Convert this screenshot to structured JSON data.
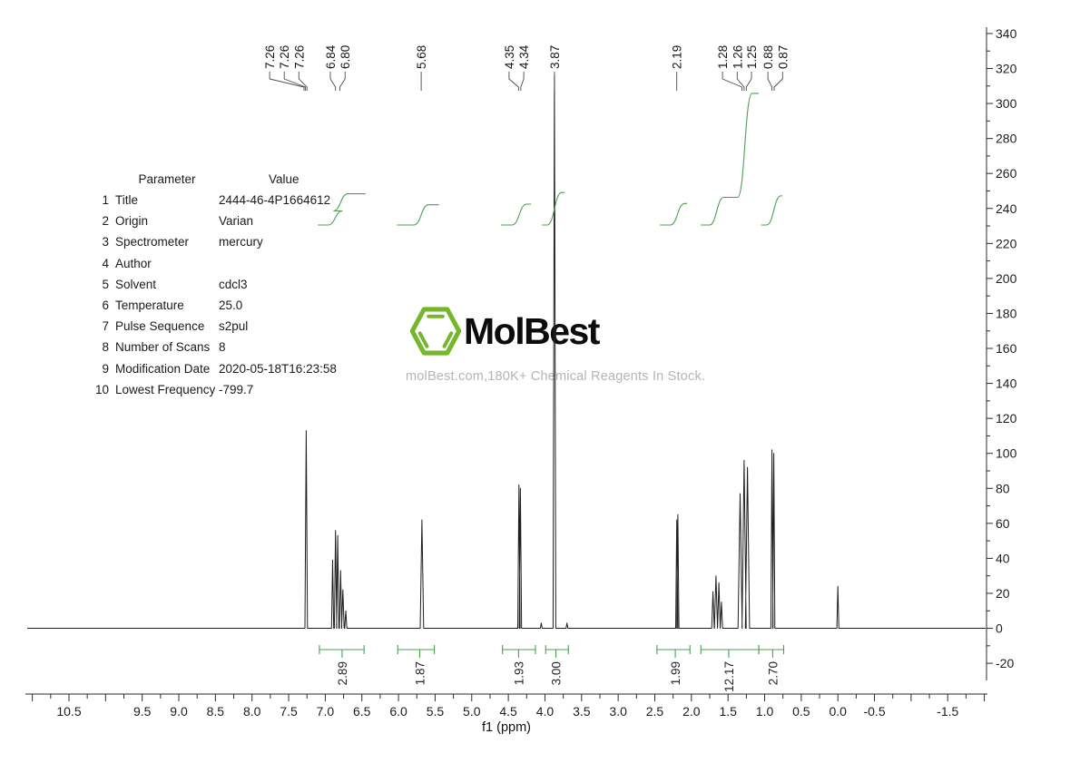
{
  "logo": {
    "brand": "MolBest",
    "tagline": "molBest.com,180K+ Chemical Reagents In Stock.",
    "hexagon_icon": "benzene-hexagon"
  },
  "parameter_table": {
    "headers": [
      "Parameter",
      "Value"
    ],
    "rows": [
      [
        "1",
        "Title",
        "2444-46-4P1664612"
      ],
      [
        "2",
        "Origin",
        "Varian"
      ],
      [
        "3",
        "Spectrometer",
        "mercury"
      ],
      [
        "4",
        "Author",
        ""
      ],
      [
        "5",
        "Solvent",
        "cdcl3"
      ],
      [
        "6",
        "Temperature",
        "25.0"
      ],
      [
        "7",
        "Pulse Sequence",
        "s2pul"
      ],
      [
        "8",
        "Number of Scans",
        "8"
      ],
      [
        "9",
        "Modification Date",
        "2020-05-18T16:23:58"
      ],
      [
        "10",
        "Lowest Frequency",
        "-799.7"
      ]
    ]
  },
  "colors": {
    "integral_green": "#4c9f50",
    "logo_green": "#74b72b",
    "trace": "#1f1f1f",
    "axis": "#2a2a2a",
    "watermark_gray": "#b5b5b5"
  },
  "chart_data": {
    "type": "line",
    "description": "1H NMR spectrum with peak picking and integration",
    "xlabel": "f1 (ppm)",
    "grid": false,
    "x_axis": {
      "range": [
        11.07,
        -2.03
      ],
      "minor_tick_step": 0.25,
      "major_tick_step": 0.5,
      "labeled_ticks": [
        "10.5",
        "9.5",
        "9.0",
        "8.5",
        "8.0",
        "7.5",
        "7.0",
        "6.5",
        "6.0",
        "5.5",
        "5.0",
        "4.5",
        "4.0",
        "3.5",
        "3.0",
        "2.5",
        "2.0",
        "1.5",
        "1.0",
        "0.5",
        "0.0",
        "-0.5",
        "-1.5"
      ]
    },
    "y_axis": {
      "range": [
        343.6,
        -29.8
      ],
      "minor_tick_step": 10,
      "major_tick_step": 20,
      "labeled_ticks": [
        340,
        320,
        300,
        280,
        260,
        240,
        220,
        200,
        180,
        160,
        140,
        120,
        100,
        80,
        60,
        40,
        20,
        0,
        -20
      ]
    },
    "peak_labels": [
      {
        "text": "7.26",
        "at": 7.76,
        "to": 7.29
      },
      {
        "text": "7.26",
        "at": 7.56,
        "to": 7.27
      },
      {
        "text": "7.26",
        "at": 7.36,
        "to": 7.25
      },
      {
        "text": "6.84",
        "at": 6.93,
        "to": 6.86
      },
      {
        "text": "6.80",
        "at": 6.73,
        "to": 6.8
      },
      {
        "text": "5.68",
        "at": 5.69,
        "to": 5.69
      },
      {
        "text": "4.35",
        "at": 4.49,
        "to": 4.36
      },
      {
        "text": "4.34",
        "at": 4.29,
        "to": 4.33
      },
      {
        "text": "3.87",
        "at": 3.87,
        "to": 3.87
      },
      {
        "text": "2.19",
        "at": 2.2,
        "to": 2.2
      },
      {
        "text": "1.28",
        "at": 1.575,
        "to": 1.31
      },
      {
        "text": "1.26",
        "at": 1.375,
        "to": 1.28
      },
      {
        "text": "1.25",
        "at": 1.18,
        "to": 1.25
      },
      {
        "text": "0.88",
        "at": 0.955,
        "to": 0.9
      },
      {
        "text": "0.87",
        "at": 0.755,
        "to": 0.87
      }
    ],
    "peaks": [
      [
        7.26,
        113,
        1.4
      ],
      [
        6.9,
        39,
        1.2
      ],
      [
        6.86,
        56,
        1.3
      ],
      [
        6.83,
        53,
        1.3
      ],
      [
        6.79,
        33,
        1.3
      ],
      [
        6.76,
        22,
        1.4
      ],
      [
        6.72,
        10,
        1.2
      ],
      [
        5.68,
        62,
        1.9
      ],
      [
        4.355,
        82,
        1.3
      ],
      [
        4.335,
        80,
        1.3
      ],
      [
        4.05,
        3,
        1.0
      ],
      [
        3.87,
        316,
        1.5
      ],
      [
        3.7,
        3,
        1.0
      ],
      [
        2.2,
        62,
        1.2
      ],
      [
        2.185,
        65,
        1.2
      ],
      [
        1.705,
        21,
        1.4
      ],
      [
        1.665,
        30,
        1.7
      ],
      [
        1.625,
        26,
        1.5
      ],
      [
        1.59,
        15,
        1.3
      ],
      [
        1.335,
        77,
        2.3
      ],
      [
        1.28,
        96,
        2.3
      ],
      [
        1.235,
        92,
        2.3
      ],
      [
        0.9,
        102,
        1.2
      ],
      [
        0.875,
        100,
        1.2
      ],
      [
        0.0,
        24,
        1.1
      ]
    ],
    "integrals": [
      {
        "value": "2.89",
        "curve_from": 7.1,
        "curve_to": 6.45,
        "steps": [
          {
            "ppm": 6.865,
            "frac": 0.45
          },
          {
            "ppm": 6.79,
            "frac": 0.55
          }
        ],
        "bracket_from": 7.08,
        "bracket_to": 6.47,
        "bracket_center": 6.77
      },
      {
        "value": "1.87",
        "curve_from": 6.02,
        "curve_to": 5.45,
        "steps": [
          {
            "ppm": 5.69,
            "frac": 1
          }
        ],
        "bracket_from": 6.01,
        "bracket_to": 5.51,
        "bracket_center": 5.71
      },
      {
        "value": "1.93",
        "curve_from": 4.6,
        "curve_to": 4.19,
        "steps": [
          {
            "ppm": 4.35,
            "frac": 1
          }
        ],
        "bracket_from": 4.58,
        "bracket_to": 4.13,
        "bracket_center": 4.36
      },
      {
        "value": "3.00",
        "curve_from": 4.04,
        "curve_to": 3.73,
        "steps": [
          {
            "ppm": 3.87,
            "frac": 1
          }
        ],
        "bracket_from": 3.99,
        "bracket_to": 3.68,
        "bracket_center": 3.85
      },
      {
        "value": "1.99",
        "curve_from": 2.43,
        "curve_to": 2.06,
        "steps": [
          {
            "ppm": 2.19,
            "frac": 1
          }
        ],
        "bracket_from": 2.47,
        "bracket_to": 2.02,
        "bracket_center": 2.22
      },
      {
        "value": "12.17",
        "curve_from": 1.87,
        "curve_to": 1.08,
        "steps": [
          {
            "ppm": 1.655,
            "frac": 0.21
          },
          {
            "ppm": 1.27,
            "frac": 0.79
          }
        ],
        "bracket_from": 1.87,
        "bracket_to": 1.08,
        "bracket_center": 1.49
      },
      {
        "value": "2.70",
        "curve_from": 1.05,
        "curve_to": 0.76,
        "steps": [
          {
            "ppm": 0.875,
            "frac": 1
          }
        ],
        "bracket_from": 1.08,
        "bracket_to": 0.74,
        "bracket_center": 0.89
      }
    ]
  }
}
